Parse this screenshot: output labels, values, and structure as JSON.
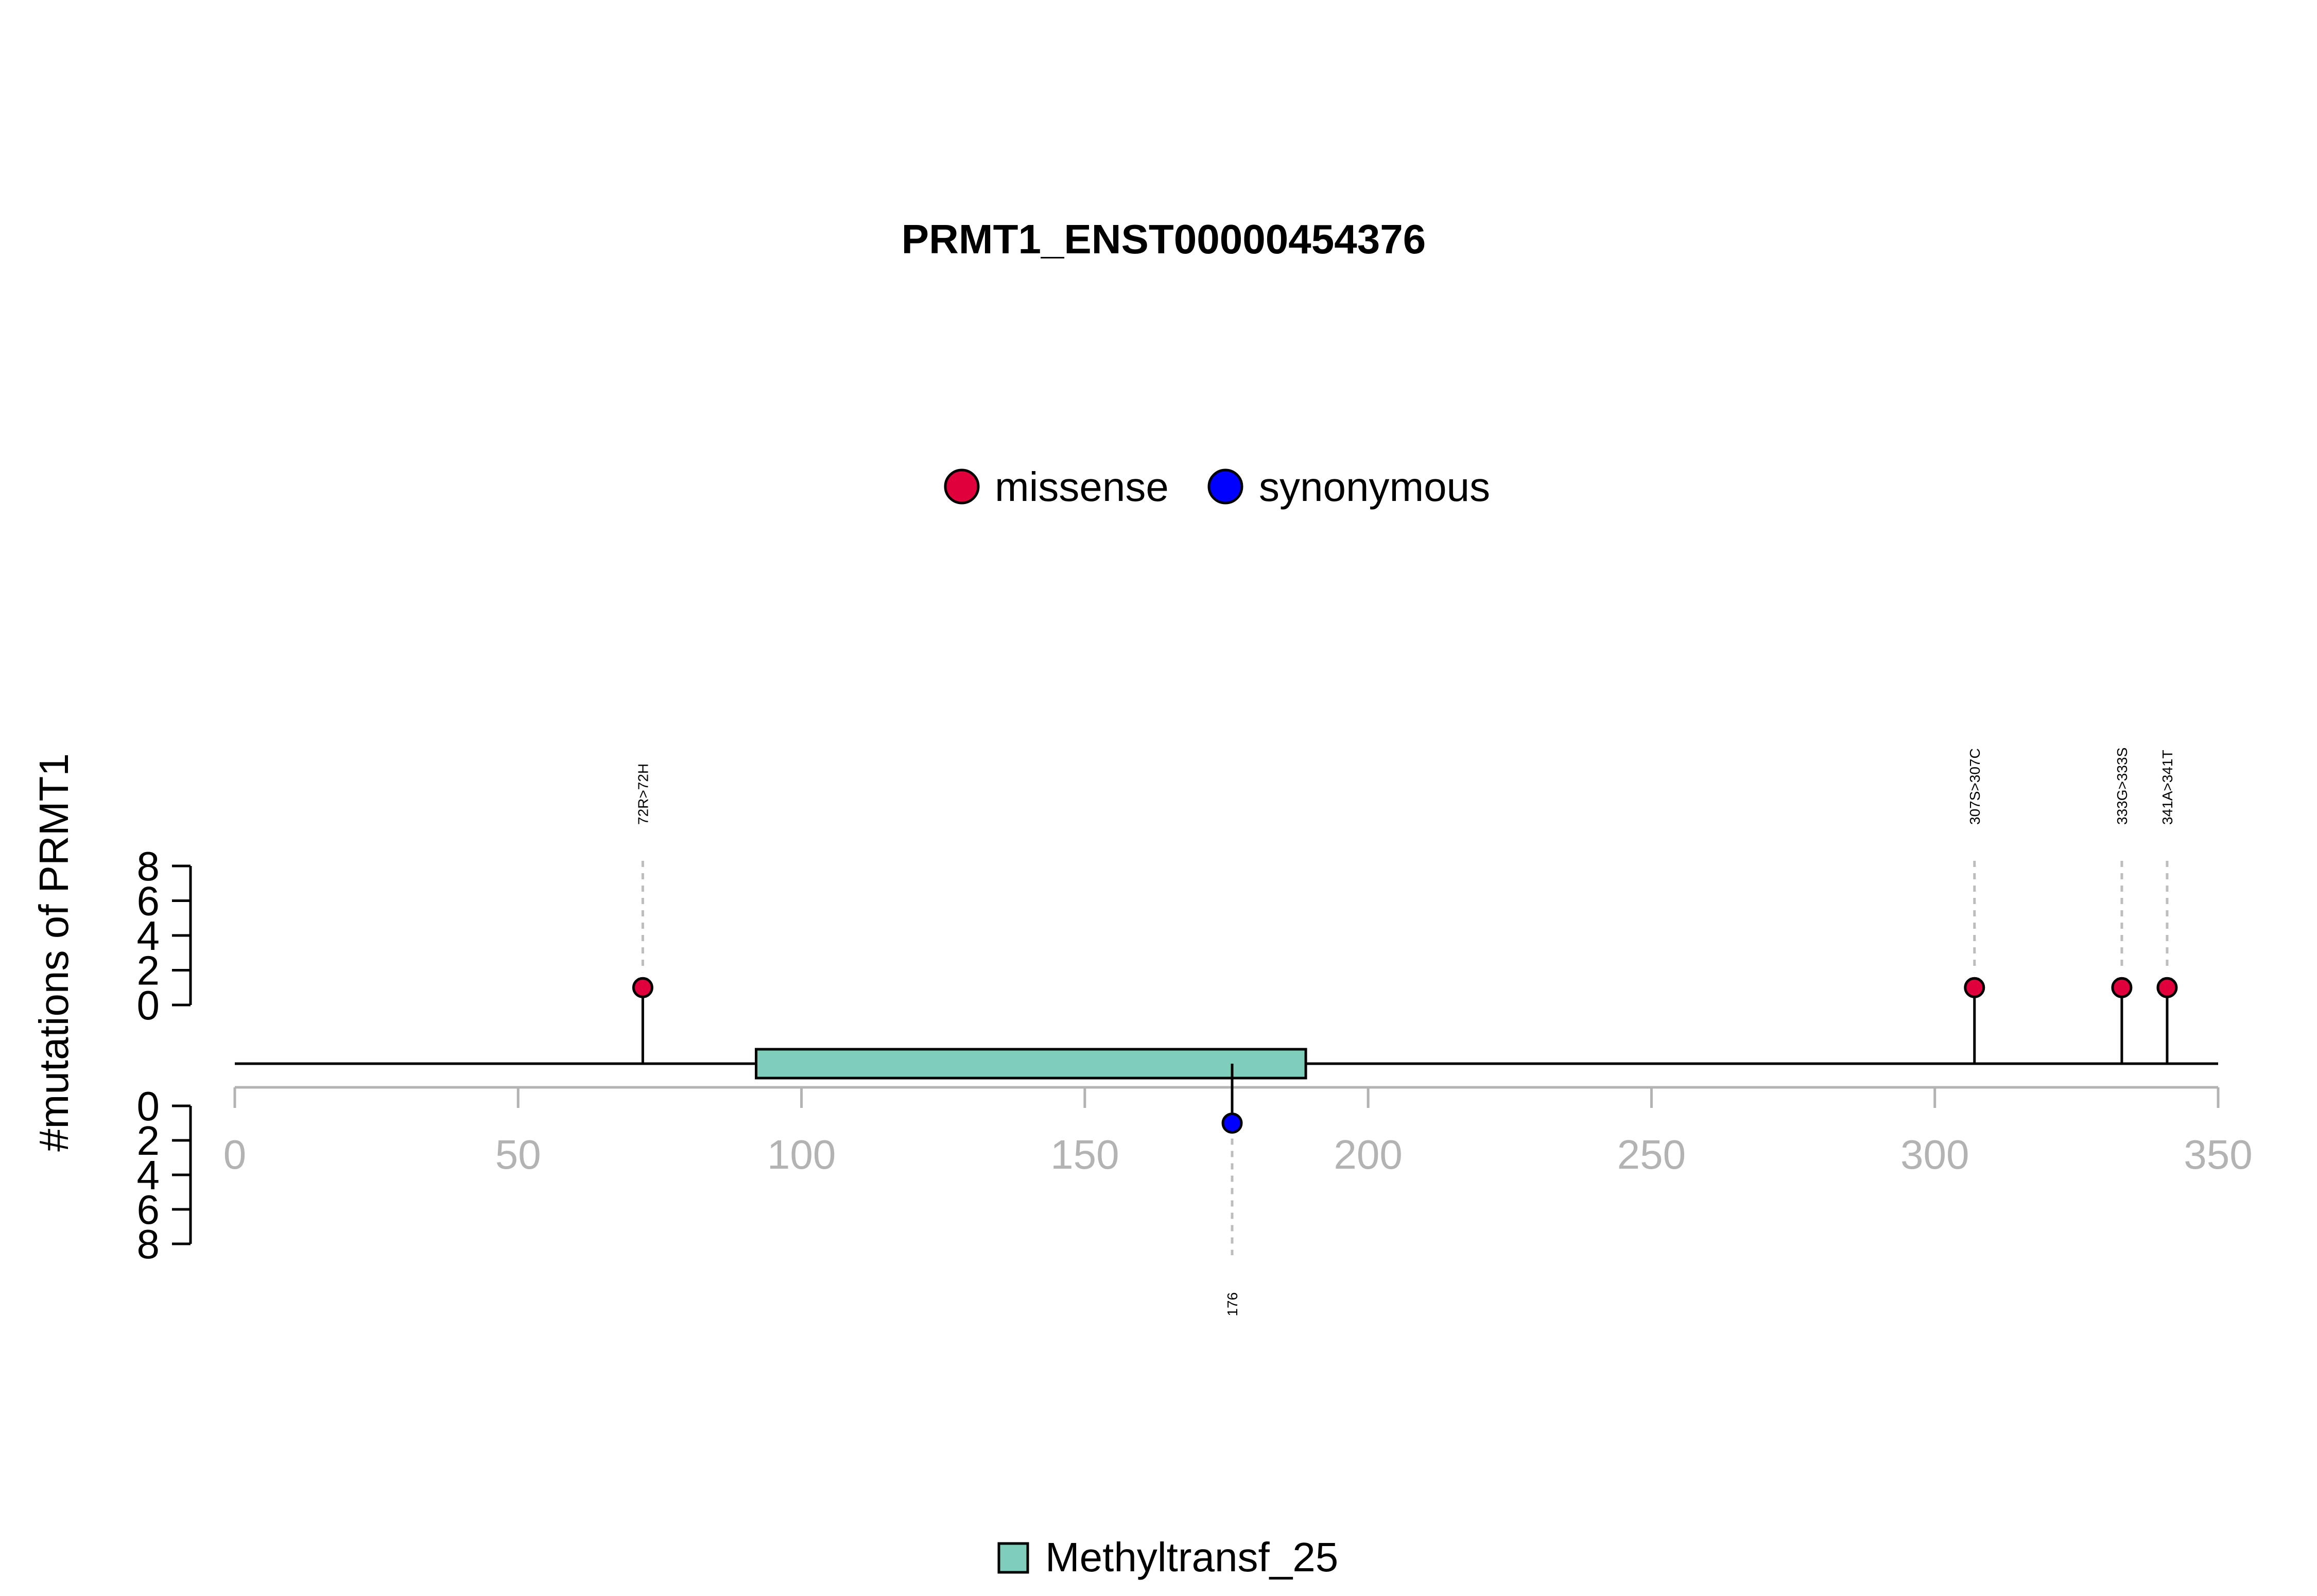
{
  "chart_data": {
    "type": "lollipop",
    "title": "PRMT1_ENST00000454376",
    "ylabel": "#mutations of PRMT1",
    "xlim": [
      0,
      350
    ],
    "x_ticks": [
      "0",
      "50",
      "100",
      "150",
      "200",
      "250",
      "300",
      "350"
    ],
    "x_tick_values": [
      0,
      50,
      100,
      150,
      200,
      250,
      300,
      350
    ],
    "y_ticks_top": [
      "0",
      "2",
      "4",
      "6",
      "8"
    ],
    "y_ticks_bottom": [
      "0",
      "2",
      "4",
      "6",
      "8"
    ],
    "y_tick_values": [
      0,
      2,
      4,
      6,
      8
    ],
    "ylim": [
      0,
      8
    ],
    "legend": [
      {
        "label": "missense",
        "color": "#e0003c"
      },
      {
        "label": "synonymous",
        "color": "#0000ff"
      }
    ],
    "domains": [
      {
        "name": "Methyltransf_25",
        "start": 92,
        "end": 189,
        "color": "#7fcdbb"
      }
    ],
    "mutations": [
      {
        "position": 72,
        "label": "72R>72H",
        "count": 1,
        "type": "missense",
        "side": "top"
      },
      {
        "position": 307,
        "label": "307S>307C",
        "count": 1,
        "type": "missense",
        "side": "top"
      },
      {
        "position": 333,
        "label": "333G>333S",
        "count": 1,
        "type": "missense",
        "side": "top"
      },
      {
        "position": 341,
        "label": "341A>341T",
        "count": 1,
        "type": "missense",
        "side": "top"
      },
      {
        "position": 176,
        "label": "176",
        "count": 1,
        "type": "synonymous",
        "side": "bottom"
      }
    ]
  }
}
